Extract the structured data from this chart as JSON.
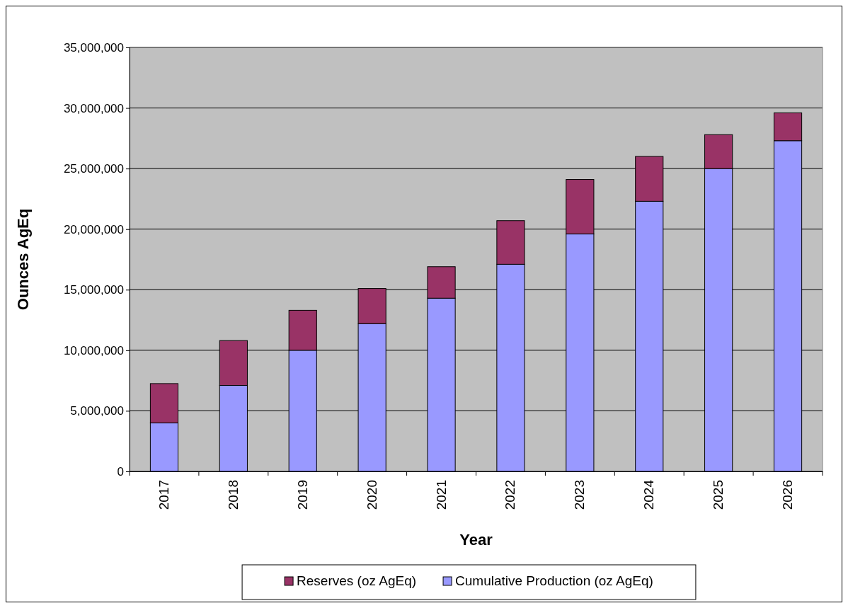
{
  "chart_data": {
    "type": "bar",
    "stacked": true,
    "xlabel": "Year",
    "ylabel": "Ounces AgEq",
    "categories": [
      "2017",
      "2018",
      "2019",
      "2020",
      "2021",
      "2022",
      "2023",
      "2024",
      "2025",
      "2026"
    ],
    "series": [
      {
        "name": "Cumulative Production (oz AgEq)",
        "color": "#9999ff",
        "values": [
          4000000,
          7100000,
          10000000,
          12200000,
          14300000,
          17100000,
          19600000,
          22300000,
          25000000,
          27300000
        ]
      },
      {
        "name": "Reserves (oz AgEq)",
        "color": "#993366",
        "values": [
          3250000,
          3700000,
          3300000,
          2900000,
          2600000,
          3600000,
          4500000,
          3700000,
          2800000,
          2300000
        ]
      }
    ],
    "ylim": [
      0,
      35000000
    ],
    "yticks": [
      {
        "value": 0,
        "label": "0"
      },
      {
        "value": 5000000,
        "label": "5,000,000"
      },
      {
        "value": 10000000,
        "label": "10,000,000"
      },
      {
        "value": 15000000,
        "label": "15,000,000"
      },
      {
        "value": 20000000,
        "label": "20,000,000"
      },
      {
        "value": 25000000,
        "label": "25,000,000"
      },
      {
        "value": 30000000,
        "label": "30,000,000"
      },
      {
        "value": 35000000,
        "label": "35,000,000"
      }
    ],
    "grid": "y",
    "legend": "bottom"
  }
}
